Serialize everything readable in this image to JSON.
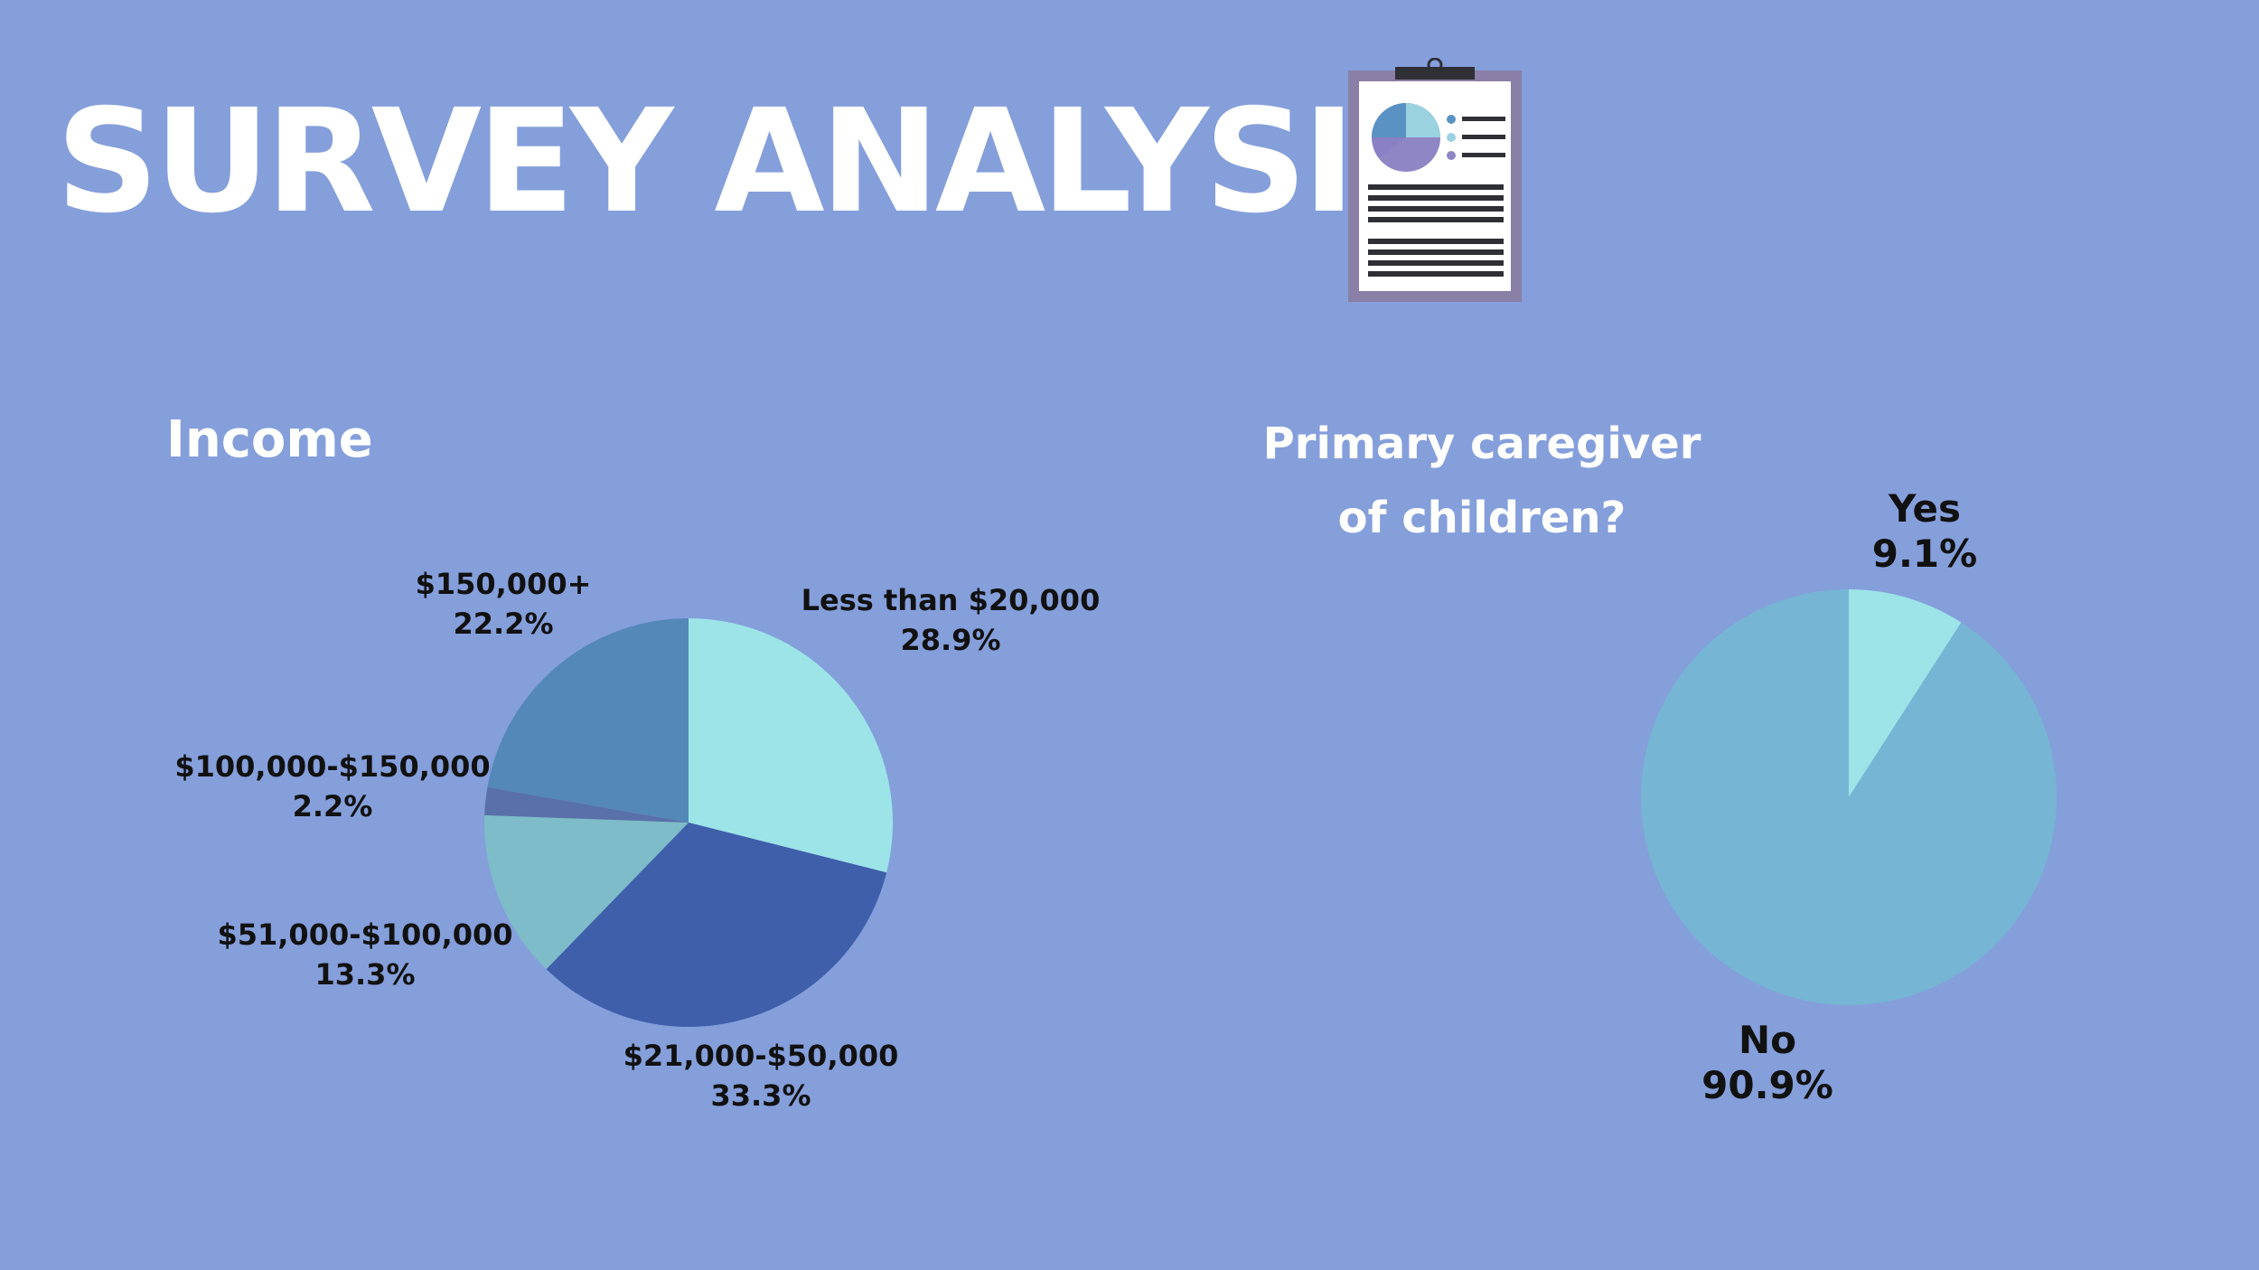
{
  "header": {
    "title": "SURVEY ANALYSIS",
    "icon": "clipboard-report-icon"
  },
  "chart_data": [
    {
      "type": "pie",
      "title": "Income",
      "slices": [
        {
          "label": "Less than $20,000",
          "value": 28.9,
          "value_label": "28.9%",
          "color": "#9ce4e8"
        },
        {
          "label": "$21,000-$50,000",
          "value": 33.3,
          "value_label": "33.3%",
          "color": "#3f5fab"
        },
        {
          "label": "$51,000-$100,000",
          "value": 13.3,
          "value_label": "13.3%",
          "color": "#7dbcc8"
        },
        {
          "label": "$100,000-$150,000",
          "value": 2.2,
          "value_label": "2.2%",
          "color": "#5970a8"
        },
        {
          "label": "$150,000+",
          "value": 22.2,
          "value_label": "22.2%",
          "color": "#5488b8"
        }
      ]
    },
    {
      "type": "pie",
      "title": "Primary caregiver of children?",
      "title_lines": [
        "Primary caregiver",
        "of children?"
      ],
      "slices": [
        {
          "label": "Yes",
          "value": 9.1,
          "value_label": "9.1%",
          "color": "#9ce4e8"
        },
        {
          "label": "No",
          "value": 90.9,
          "value_label": "90.9%",
          "color": "#76b5d3"
        }
      ]
    }
  ]
}
